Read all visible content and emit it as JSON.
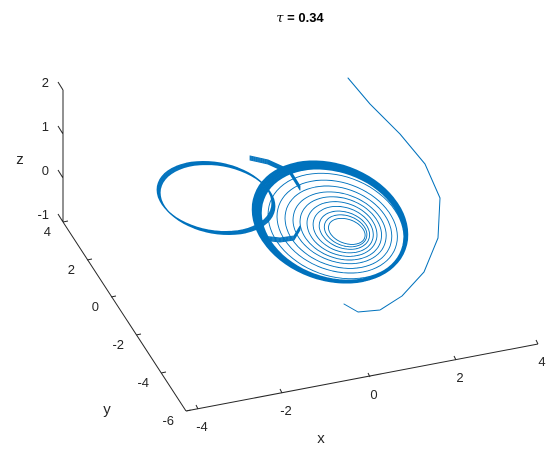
{
  "chart_data": {
    "type": "line",
    "title_symbol": "τ",
    "title_rest": " = 0.34",
    "xlabel": "x",
    "ylabel": "y",
    "zlabel": "z",
    "x_ticks": [
      "-4",
      "-2",
      "0",
      "2",
      "4"
    ],
    "y_ticks": [
      "-6",
      "-4",
      "-2",
      "0",
      "2",
      "4"
    ],
    "z_ticks": [
      "-1",
      "0",
      "1",
      "2"
    ],
    "xlim": [
      -4,
      4
    ],
    "ylim": [
      -6,
      4
    ],
    "zlim": [
      -1,
      2
    ],
    "grid": false,
    "series_color": "#0072bd",
    "series": [
      {
        "description": "trajectory",
        "attractor": {
          "left_lobe_center": [
            -1.6,
            1.1,
            0.2
          ],
          "right_lobe_center": [
            1.0,
            -0.3,
            -0.1
          ],
          "inner_spiral_start": [
            1.0,
            -0.55,
            -0.2
          ]
        },
        "transient_start": [
          2.0,
          4.0,
          2.0
        ]
      }
    ]
  }
}
